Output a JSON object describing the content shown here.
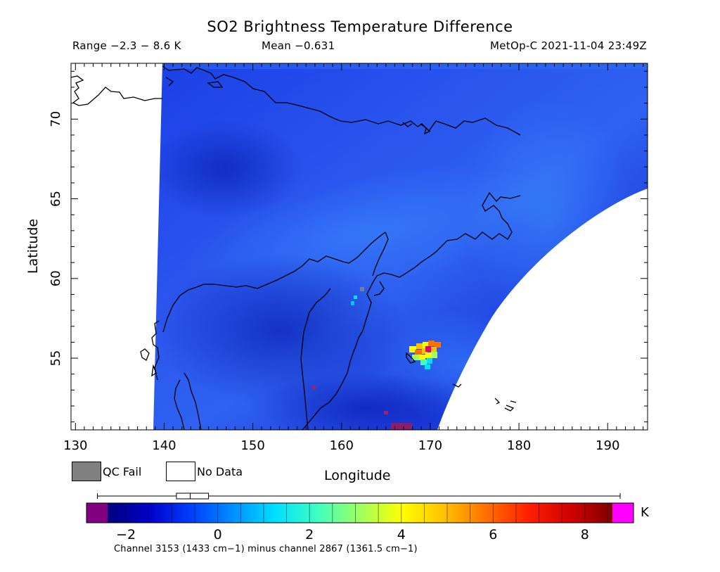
{
  "header": {
    "title": "SO2 Brightness Temperature Difference",
    "range": "Range −2.3 − 8.6 K",
    "mean": "Mean −0.631",
    "satellite_time": "MetOp-C 2021-11-04 23:49Z"
  },
  "map": {
    "x_label": "Longitude",
    "y_label": "Latitude",
    "x_ticks": [
      "130",
      "140",
      "150",
      "160",
      "170",
      "180",
      "190"
    ],
    "y_ticks": [
      "55",
      "60",
      "65",
      "70"
    ],
    "x_range": [
      129.5,
      194.5
    ],
    "y_range": [
      50.5,
      73.5
    ],
    "so2_hotspot": {
      "lon": 169.5,
      "lat": 54.5,
      "peak_K": 8.6
    }
  },
  "legend": {
    "qc_fail": "QC Fail",
    "no_data": "No Data",
    "qc_fail_color": "#808080",
    "no_data_color": "#ffffff"
  },
  "colorbar": {
    "unit": "K",
    "tick_labels": [
      "−2",
      "0",
      "2",
      "4",
      "6",
      "8"
    ],
    "tick_values": [
      -2,
      0,
      2,
      4,
      6,
      8
    ],
    "value_range": [
      -2.4,
      8.6
    ],
    "colors": [
      "#000080",
      "#0000c8",
      "#0040ff",
      "#0090ff",
      "#00e0ff",
      "#40ffc0",
      "#a0ff60",
      "#ffff00",
      "#ffc000",
      "#ff7000",
      "#ff2000",
      "#d00000",
      "#800000"
    ],
    "under_color": "#800080",
    "over_color": "#ff00ff",
    "box_plot": {
      "min": -2.3,
      "q1": -0.9,
      "median": -0.6,
      "q3": -0.2,
      "max": 8.6
    },
    "caption": "Channel 3153 (1433 cm−1) minus channel 2867 (1361.5 cm−1)"
  }
}
